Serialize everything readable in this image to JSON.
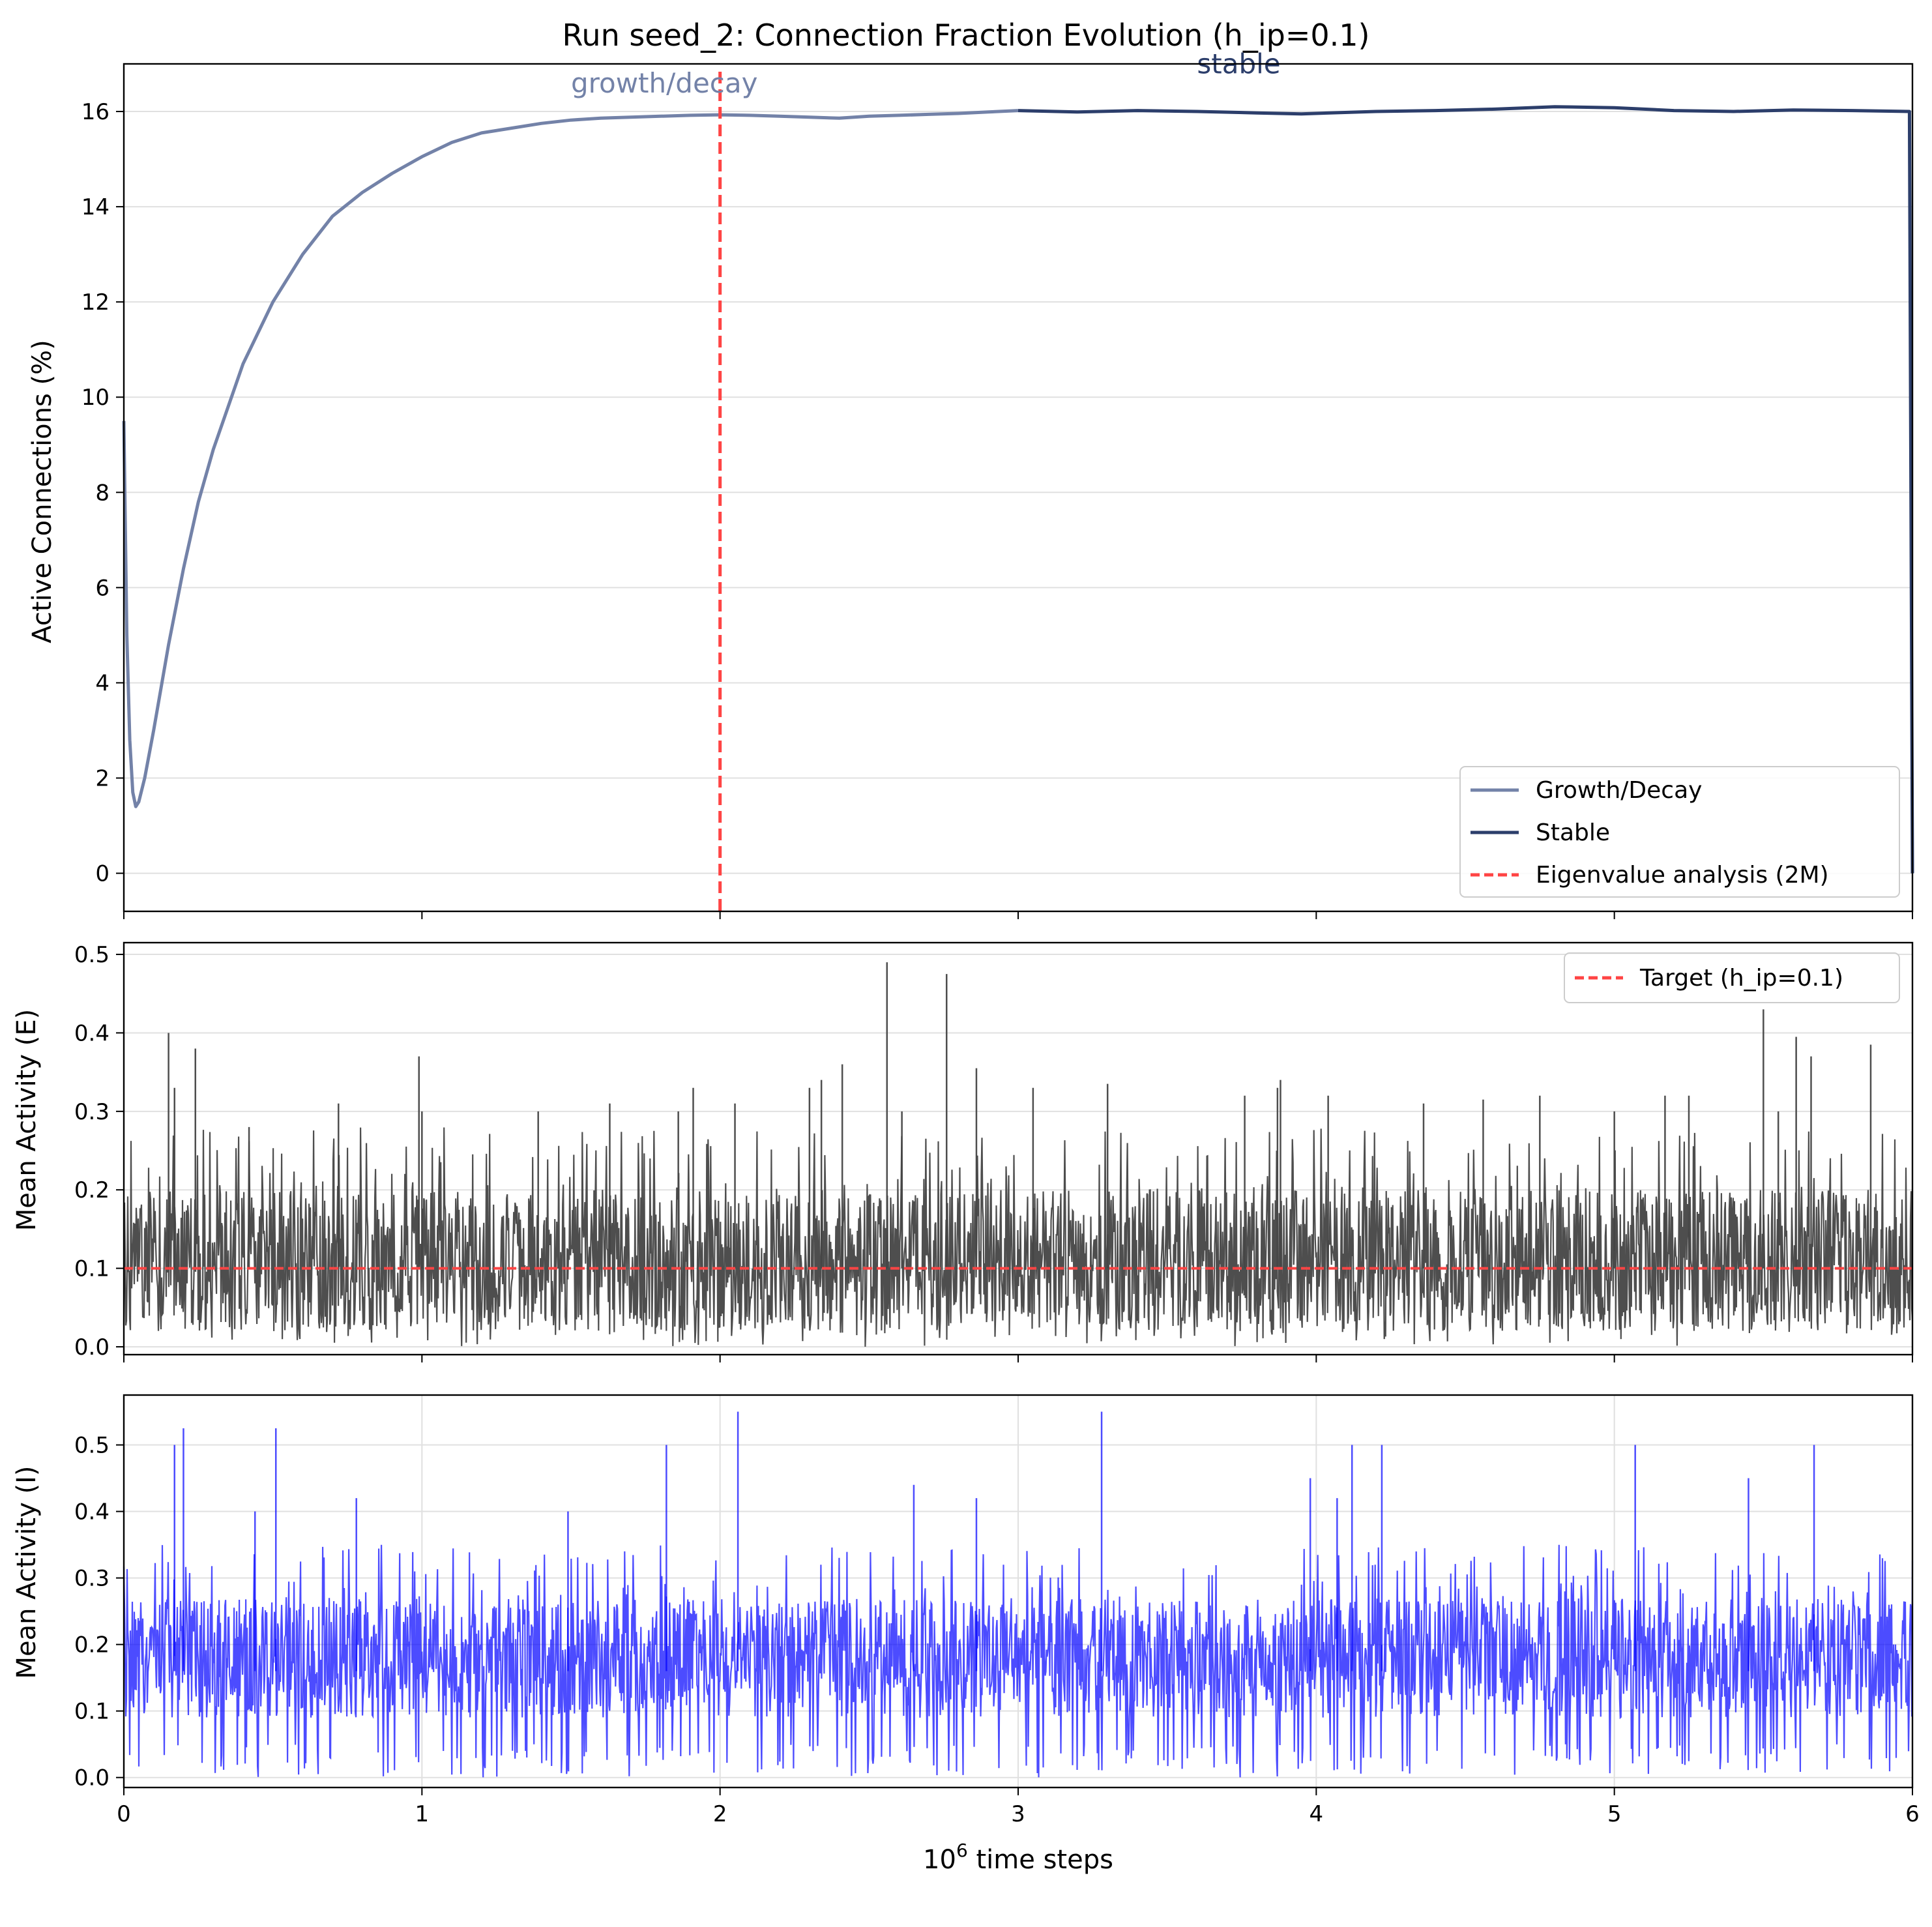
{
  "title": "Run seed_2: Connection Fraction Evolution (h_ip=0.1)",
  "xlabel_base": "10",
  "xlabel_exp": "6",
  "xlabel_rest": " time steps",
  "chart_data": [
    {
      "type": "line",
      "title": "Run seed_2: Connection Fraction Evolution (h_ip=0.1)",
      "ylabel": "Active Connections (%)",
      "xlim": [
        0,
        6
      ],
      "ylim": [
        -0.8,
        17
      ],
      "yticks": [
        0,
        2,
        4,
        6,
        8,
        10,
        12,
        14,
        16
      ],
      "grid": "y",
      "legend": "lower-right",
      "annotations": [
        {
          "text": "growth/decay",
          "x": 1.5,
          "y": 16.4,
          "color": "#7382A8"
        },
        {
          "text": "stable",
          "x": 3.6,
          "y": 16.8,
          "color": "#2C3E6B"
        }
      ],
      "vline": {
        "x": 2,
        "name": "Eigenvalue analysis (2M)",
        "color": "#FF4444"
      },
      "series": [
        {
          "name": "Growth/Decay",
          "color": "#7382A8",
          "x": [
            0,
            0.01,
            0.02,
            0.03,
            0.04,
            0.05,
            0.07,
            0.1,
            0.15,
            0.2,
            0.25,
            0.3,
            0.4,
            0.5,
            0.6,
            0.7,
            0.8,
            0.9,
            1.0,
            1.1,
            1.2,
            1.3,
            1.4,
            1.5,
            1.6,
            1.7,
            1.8,
            1.9,
            2.0,
            2.1,
            2.2,
            2.3,
            2.4,
            2.5,
            2.6,
            2.7,
            2.8,
            2.9,
            3.0
          ],
          "y": [
            9.5,
            5.0,
            2.8,
            1.7,
            1.4,
            1.5,
            2.0,
            3.0,
            4.8,
            6.4,
            7.8,
            8.9,
            10.7,
            12.0,
            13.0,
            13.8,
            14.3,
            14.7,
            15.05,
            15.35,
            15.55,
            15.65,
            15.75,
            15.82,
            15.86,
            15.88,
            15.9,
            15.92,
            15.93,
            15.92,
            15.9,
            15.88,
            15.86,
            15.9,
            15.92,
            15.94,
            15.96,
            15.99,
            16.02
          ]
        },
        {
          "name": "Stable",
          "color": "#2C3E6B",
          "x": [
            3.0,
            3.2,
            3.4,
            3.6,
            3.8,
            3.95,
            4.2,
            4.4,
            4.6,
            4.8,
            5.0,
            5.2,
            5.4,
            5.6,
            5.8,
            5.99,
            6.0
          ],
          "y": [
            16.02,
            15.99,
            16.02,
            16.0,
            15.97,
            15.95,
            16.0,
            16.02,
            16.05,
            16.1,
            16.08,
            16.02,
            16.0,
            16.03,
            16.02,
            16.0,
            0
          ]
        }
      ]
    },
    {
      "type": "line",
      "ylabel": "Mean Activity (E)",
      "xlim": [
        0,
        6
      ],
      "ylim": [
        -0.01,
        0.515
      ],
      "yticks": [
        0.0,
        0.1,
        0.2,
        0.3,
        0.4,
        0.5
      ],
      "grid": "y",
      "legend": "top-right",
      "hline": {
        "y": 0.1,
        "name": "Target (h_ip=0.1)",
        "color": "#FF4444"
      },
      "series": [
        {
          "name": "",
          "color": "#444444",
          "noise": {
            "mean": 0.1,
            "low_band": 0.02,
            "high_band": 0.2,
            "min": 0.0
          },
          "peaks": {
            "x": [
              0.15,
              0.17,
              0.24,
              0.42,
              0.72,
              0.99,
              1.0,
              1.39,
              1.63,
              1.86,
              1.91,
              2.05,
              2.3,
              2.34,
              2.41,
              2.56,
              2.61,
              2.76,
              2.86,
              3.05,
              3.3,
              3.76,
              3.87,
              3.88,
              4.04,
              4.36,
              4.56,
              4.75,
              5.0,
              5.17,
              5.25,
              5.5,
              5.55,
              5.61,
              5.66,
              5.86
            ],
            "y": [
              0.4,
              0.33,
              0.38,
              0.28,
              0.31,
              0.37,
              0.3,
              0.3,
              0.31,
              0.3,
              0.33,
              0.31,
              0.33,
              0.34,
              0.36,
              0.49,
              0.3,
              0.475,
              0.355,
              0.33,
              0.335,
              0.32,
              0.33,
              0.34,
              0.32,
              0.31,
              0.315,
              0.32,
              0.3,
              0.32,
              0.32,
              0.43,
              0.3,
              0.395,
              0.37,
              0.385
            ]
          }
        }
      ]
    },
    {
      "type": "line",
      "ylabel": "Mean Activity (I)",
      "xlabel": "10^6 time steps",
      "xlim": [
        0,
        6
      ],
      "ylim": [
        -0.015,
        0.575
      ],
      "xticks": [
        0,
        1,
        2,
        3,
        4,
        5,
        6
      ],
      "yticks": [
        0.0,
        0.1,
        0.2,
        0.3,
        0.4,
        0.5
      ],
      "grid": "both",
      "series": [
        {
          "name": "",
          "color": "#0000FF",
          "noise": {
            "mean": 0.16,
            "low_band": 0.09,
            "high_band": 0.27,
            "min": 0.0
          },
          "peaks": {
            "x": [
              0.17,
              0.2,
              0.44,
              0.51,
              0.78,
              1.49,
              1.82,
              2.06,
              2.65,
              2.86,
              3.28,
              3.98,
              4.07,
              4.12,
              4.22,
              5.07,
              5.45,
              5.67
            ],
            "y": [
              0.5,
              0.525,
              0.4,
              0.525,
              0.42,
              0.4,
              0.5,
              0.55,
              0.44,
              0.42,
              0.55,
              0.45,
              0.42,
              0.5,
              0.5,
              0.5,
              0.45,
              0.5
            ]
          }
        }
      ]
    }
  ]
}
